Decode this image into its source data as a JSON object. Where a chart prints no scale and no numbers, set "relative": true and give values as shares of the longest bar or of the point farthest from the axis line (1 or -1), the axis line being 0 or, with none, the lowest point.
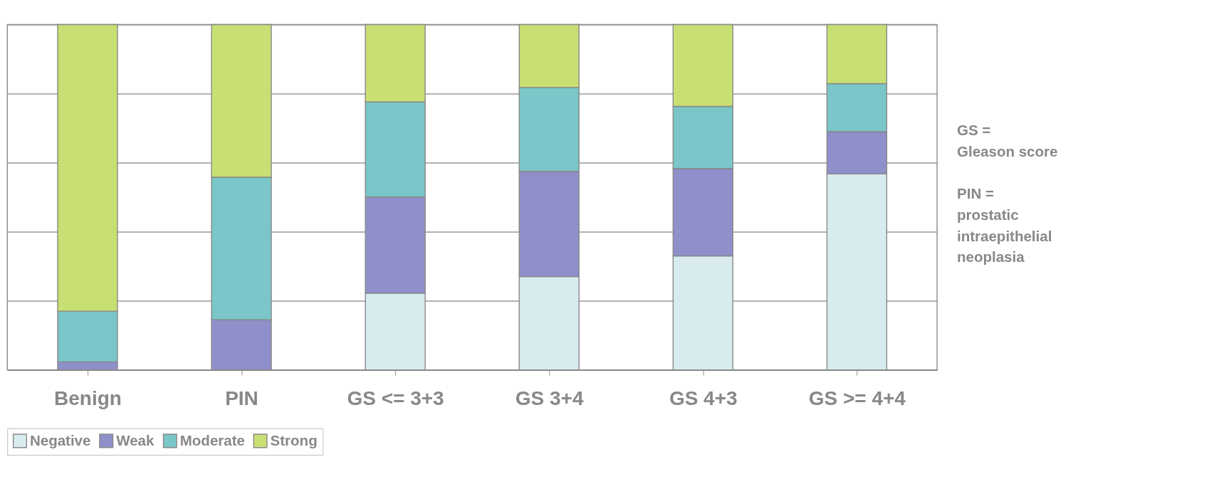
{
  "chart_data": {
    "type": "bar",
    "stacked": true,
    "relative": true,
    "grid": "y",
    "legend": "bottom",
    "categories": [
      "Benign",
      "PIN",
      "GS <= 3+3",
      "GS 3+4",
      "GS 4+3",
      "GS >= 4+4"
    ],
    "series": [
      {
        "name": "Negative",
        "color": "#d8ecef",
        "values": [
          0,
          0,
          0.222,
          0.27,
          0.33,
          0.568
        ]
      },
      {
        "name": "Weak",
        "color": "#8f8fca",
        "values": [
          0.023,
          0.145,
          0.278,
          0.305,
          0.253,
          0.122
        ]
      },
      {
        "name": "Moderate",
        "color": "#7ac6c8",
        "values": [
          0.147,
          0.413,
          0.276,
          0.243,
          0.18,
          0.139
        ]
      },
      {
        "name": "Strong",
        "color": "#c8e073",
        "values": [
          0.83,
          0.442,
          0.224,
          0.182,
          0.237,
          0.171
        ]
      }
    ],
    "annotations": [
      "GS =\nGleason score",
      "PIN =\nprostatic\nintraepithelial\nneoplasia"
    ]
  }
}
